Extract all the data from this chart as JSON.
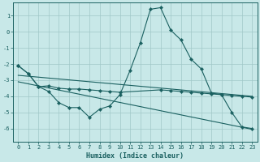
{
  "xlabel": "Humidex (Indice chaleur)",
  "bg_color": "#c8e8e8",
  "grid_color": "#a0c8c8",
  "line_color": "#1a6060",
  "xlim": [
    -0.5,
    23.5
  ],
  "ylim": [
    -6.8,
    1.8
  ],
  "xticks": [
    0,
    1,
    2,
    3,
    4,
    5,
    6,
    7,
    8,
    9,
    10,
    11,
    12,
    13,
    14,
    15,
    16,
    17,
    18,
    19,
    20,
    21,
    22,
    23
  ],
  "yticks": [
    -6,
    -5,
    -4,
    -3,
    -2,
    -1,
    0,
    1
  ],
  "series1_x": [
    0,
    1,
    2,
    3,
    4,
    5,
    6,
    7,
    8,
    9,
    10,
    11,
    12,
    13,
    14,
    15,
    16,
    17,
    18,
    19,
    20,
    21,
    22,
    23
  ],
  "series1_y": [
    -2.1,
    -2.6,
    -3.4,
    -3.7,
    -4.4,
    -4.7,
    -4.7,
    -5.3,
    -4.8,
    -4.6,
    -3.9,
    -2.4,
    -0.7,
    1.4,
    1.5,
    0.1,
    -0.5,
    -1.7,
    -2.3,
    -3.8,
    -3.9,
    -5.0,
    -5.9,
    -6.0
  ],
  "series2_x": [
    0,
    1,
    2,
    3,
    4,
    5,
    6,
    7,
    8,
    9,
    10,
    14,
    15,
    16,
    17,
    18,
    19,
    20,
    21,
    22,
    23
  ],
  "series2_y": [
    -2.1,
    -2.6,
    -3.4,
    -3.35,
    -3.5,
    -3.55,
    -3.55,
    -3.6,
    -3.65,
    -3.7,
    -3.75,
    -3.6,
    -3.65,
    -3.7,
    -3.75,
    -3.8,
    -3.85,
    -3.9,
    -3.95,
    -4.0,
    -4.05
  ],
  "series3_x": [
    0,
    23
  ],
  "series3_y": [
    -3.1,
    -6.05
  ],
  "series4_x": [
    0,
    23
  ],
  "series4_y": [
    -2.7,
    -4.0
  ]
}
